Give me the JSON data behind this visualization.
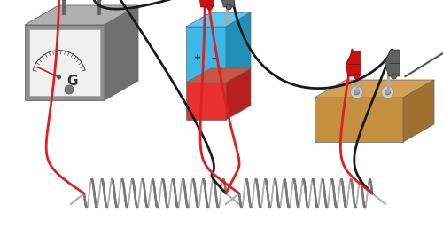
{
  "bg_color": "#ffffff",
  "wire_red": "#dd2020",
  "wire_black": "#1a1a1a",
  "clip_red": "#cc1111",
  "clip_dark": "#555555",
  "gal_gray": "#909090",
  "gal_gray_top": "#b0b0b0",
  "gal_gray_side": "#707070",
  "gal_face": "#f2f2f2",
  "bat_blue": "#3ab8e8",
  "bat_blue_top": "#5ac8f5",
  "bat_blue_side": "#2090b8",
  "bat_red": "#e83030",
  "bat_red_side": "#b82020",
  "board_top": "#d4a055",
  "board_front": "#c49040",
  "board_side": "#a07030",
  "coil_color": "#aaaaaa"
}
